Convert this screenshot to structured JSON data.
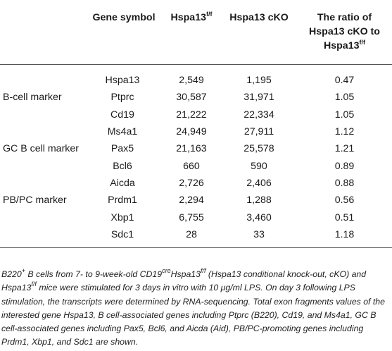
{
  "table": {
    "headers": {
      "gene_symbol": "Gene symbol",
      "col1_base": "Hspa13",
      "col1_sup": "f/f",
      "col2": "Hspa13 cKO",
      "ratio_line1": "The ratio of",
      "ratio_line2": "Hspa13 cKO to",
      "ratio_line3_base": "Hspa13",
      "ratio_line3_sup": "f/f"
    },
    "rows": [
      {
        "label": "",
        "gene": "Hspa13",
        "ff": "2,549",
        "cko": "1,195",
        "ratio": "0.47"
      },
      {
        "label": "B-cell marker",
        "gene": "Ptprc",
        "ff": "30,587",
        "cko": "31,971",
        "ratio": "1.05"
      },
      {
        "label": "",
        "gene": "Cd19",
        "ff": "21,222",
        "cko": "22,334",
        "ratio": "1.05"
      },
      {
        "label": "",
        "gene": "Ms4a1",
        "ff": "24,949",
        "cko": "27,911",
        "ratio": "1.12"
      },
      {
        "label": "GC B cell marker",
        "gene": "Pax5",
        "ff": "21,163",
        "cko": "25,578",
        "ratio": "1.21"
      },
      {
        "label": "",
        "gene": "Bcl6",
        "ff": "660",
        "cko": "590",
        "ratio": "0.89"
      },
      {
        "label": "",
        "gene": "Aicda",
        "ff": "2,726",
        "cko": "2,406",
        "ratio": "0.88"
      },
      {
        "label": "PB/PC marker",
        "gene": "Prdm1",
        "ff": "2,294",
        "cko": "1,288",
        "ratio": "0.56"
      },
      {
        "label": "",
        "gene": "Xbp1",
        "ff": "6,755",
        "cko": "3,460",
        "ratio": "0.51"
      },
      {
        "label": "",
        "gene": "Sdc1",
        "ff": "28",
        "cko": "33",
        "ratio": "1.18"
      }
    ]
  },
  "caption": {
    "p1": "B220",
    "p1_sup": "+",
    "p2": " B cells from 7- to 9-week-old CD19",
    "p2_sup": "cre",
    "p3": "Hspa13",
    "p3_sup": "f/f",
    "p4": " (Hspa13 conditional knock-out, cKO) and Hspa13",
    "p4_sup": "f/f",
    "p5": " mice were stimulated for 3 days in vitro with 10 μg/ml LPS. On day 3 following LPS stimulation, the transcripts were determined by RNA-sequencing. Total exon fragments values of the interested gene Hspa13, B cell-associated genes including Ptprc (B220), Cd19, and Ms4a1, GC B cell-associated genes including Pax5, Bcl6, and Aicda (Aid), PB/PC-promoting genes including Prdm1, Xbp1, and Sdc1 are shown."
  }
}
